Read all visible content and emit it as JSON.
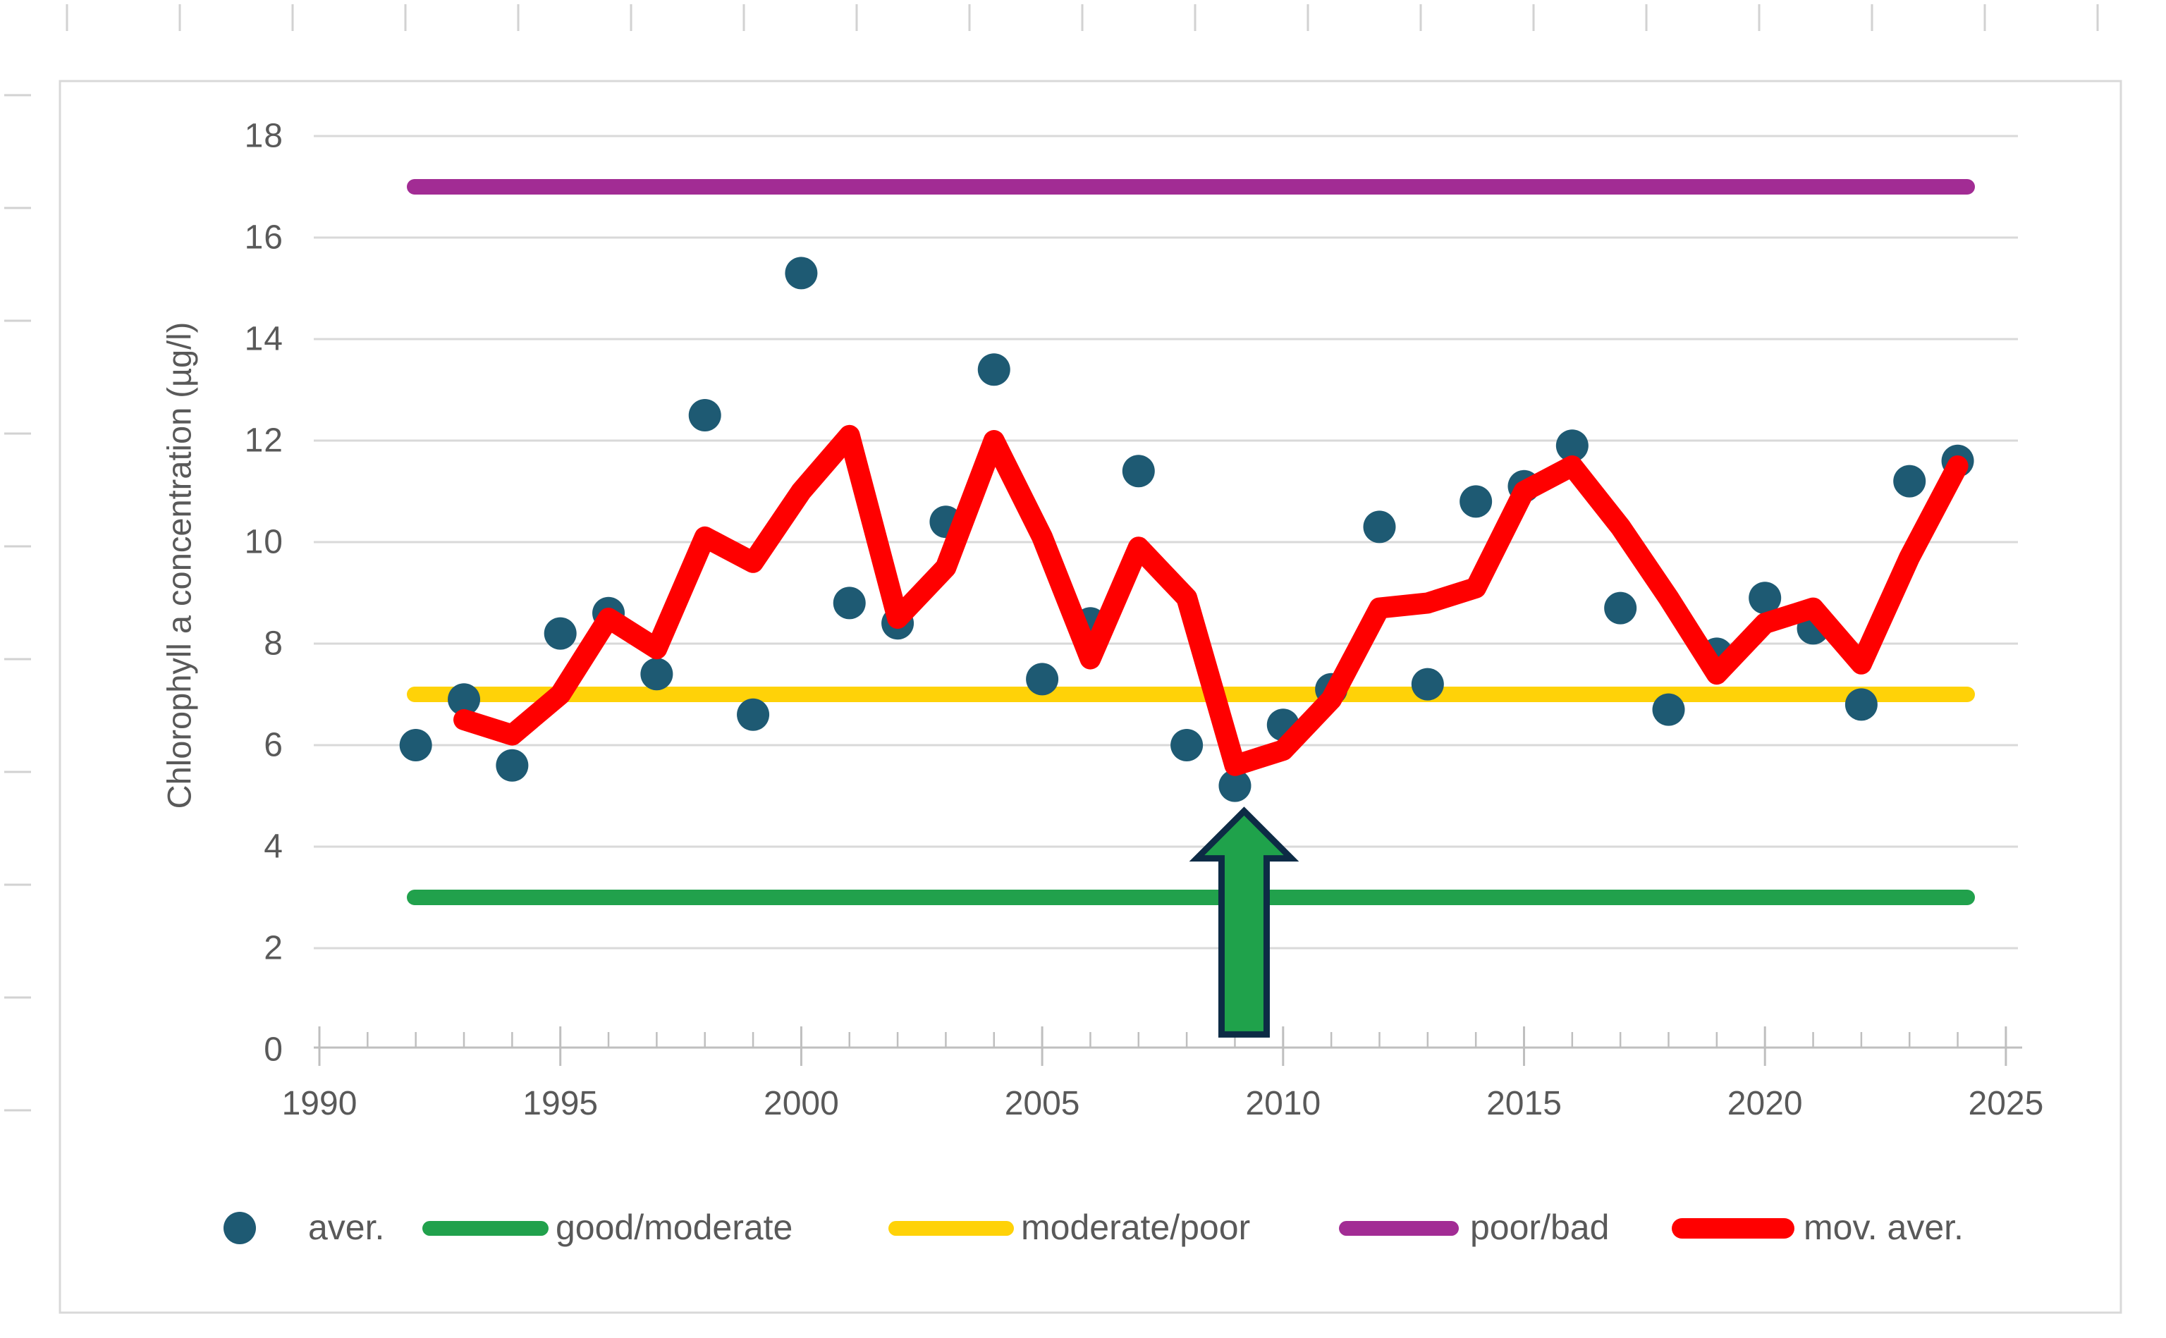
{
  "window": {
    "background": "#FFFFFF"
  },
  "chart_data": {
    "type": "scatter",
    "title": "",
    "xlabel": "",
    "ylabel": "Chlorophyll a concentration (µg/l)",
    "xlim": [
      1990,
      2025
    ],
    "ylim": [
      0,
      18
    ],
    "grid": "horizontal",
    "x_tick_years": [
      1990,
      1995,
      2000,
      2005,
      2010,
      2015,
      2020,
      2025
    ],
    "x_tick_labels": [
      "1990",
      "1995",
      "2000",
      "2005",
      "2010",
      "2015",
      "2020",
      "2025"
    ],
    "y_tick_values": [
      0,
      2,
      4,
      6,
      8,
      10,
      12,
      14,
      16,
      18
    ],
    "y_tick_labels": [
      "0",
      "2",
      "4",
      "6",
      "8",
      "10",
      "12",
      "14",
      "16",
      "18"
    ],
    "minor_x_tick_step": 1,
    "series": [
      {
        "name": "aver.",
        "kind": "scatter",
        "color": "#1E5A73",
        "years": [
          1992,
          1993,
          1994,
          1995,
          1996,
          1997,
          1998,
          1999,
          2000,
          2001,
          2002,
          2003,
          2004,
          2005,
          2006,
          2007,
          2008,
          2009,
          2010,
          2011,
          2012,
          2013,
          2014,
          2015,
          2016,
          2017,
          2018,
          2019,
          2020,
          2021,
          2022,
          2023,
          2024
        ],
        "values": [
          6.0,
          6.9,
          5.6,
          8.2,
          8.6,
          7.4,
          12.5,
          6.6,
          15.3,
          8.8,
          8.4,
          10.4,
          13.4,
          7.3,
          8.4,
          11.4,
          6.0,
          5.2,
          6.4,
          7.1,
          10.3,
          7.2,
          10.8,
          11.1,
          11.9,
          8.7,
          6.7,
          7.8,
          8.9,
          8.3,
          6.8,
          11.2,
          11.6
        ]
      },
      {
        "name": "good/moderate",
        "kind": "hline",
        "color": "#21A14C",
        "value": 3
      },
      {
        "name": "moderate/poor",
        "kind": "hline",
        "color": "#FFD208",
        "value": 7
      },
      {
        "name": "poor/bad",
        "kind": "hline",
        "color": "#A22C94",
        "value": 17
      },
      {
        "name": "mov. aver.",
        "kind": "line",
        "color": "#FF0000",
        "years": [
          1993,
          1994,
          1995,
          1996,
          1997,
          1998,
          1999,
          2000,
          2001,
          2002,
          2003,
          2004,
          2005,
          2006,
          2007,
          2008,
          2009,
          2010,
          2011,
          2012,
          2013,
          2014,
          2015,
          2016,
          2017,
          2018,
          2019,
          2020,
          2021,
          2022,
          2023,
          2024
        ],
        "values": [
          6.5,
          6.2,
          7.0,
          8.5,
          7.9,
          10.1,
          9.6,
          11.0,
          12.1,
          8.5,
          9.5,
          12.0,
          10.1,
          7.7,
          9.9,
          8.9,
          5.6,
          5.9,
          6.9,
          8.7,
          8.8,
          9.1,
          11.0,
          11.5,
          10.3,
          8.9,
          7.4,
          8.4,
          8.7,
          7.6,
          9.7,
          11.5
        ]
      }
    ],
    "annotations": [
      {
        "type": "up-arrow",
        "year": 2009,
        "tip_value": 4.7,
        "base_value": 0.3,
        "fill": "#1FA24B",
        "outline": "#0D2B45"
      }
    ],
    "legend": {
      "position": "bottom",
      "entries": [
        {
          "label": "aver.",
          "marker": "dot",
          "color": "#1E5A73"
        },
        {
          "label": "good/moderate",
          "marker": "line",
          "color": "#21A14C"
        },
        {
          "label": "moderate/poor",
          "marker": "line",
          "color": "#FFD208"
        },
        {
          "label": "poor/bad",
          "marker": "line",
          "color": "#A22C94"
        },
        {
          "label": "mov. aver.",
          "marker": "line-thick",
          "color": "#FF0000"
        }
      ]
    },
    "colors": {
      "gridline": "#D9D9D9",
      "axis": "#BFBFBF",
      "tick_text": "#595959",
      "frame_border": "#D9D9D9",
      "ruler_tick": "#D2D2D2"
    }
  }
}
